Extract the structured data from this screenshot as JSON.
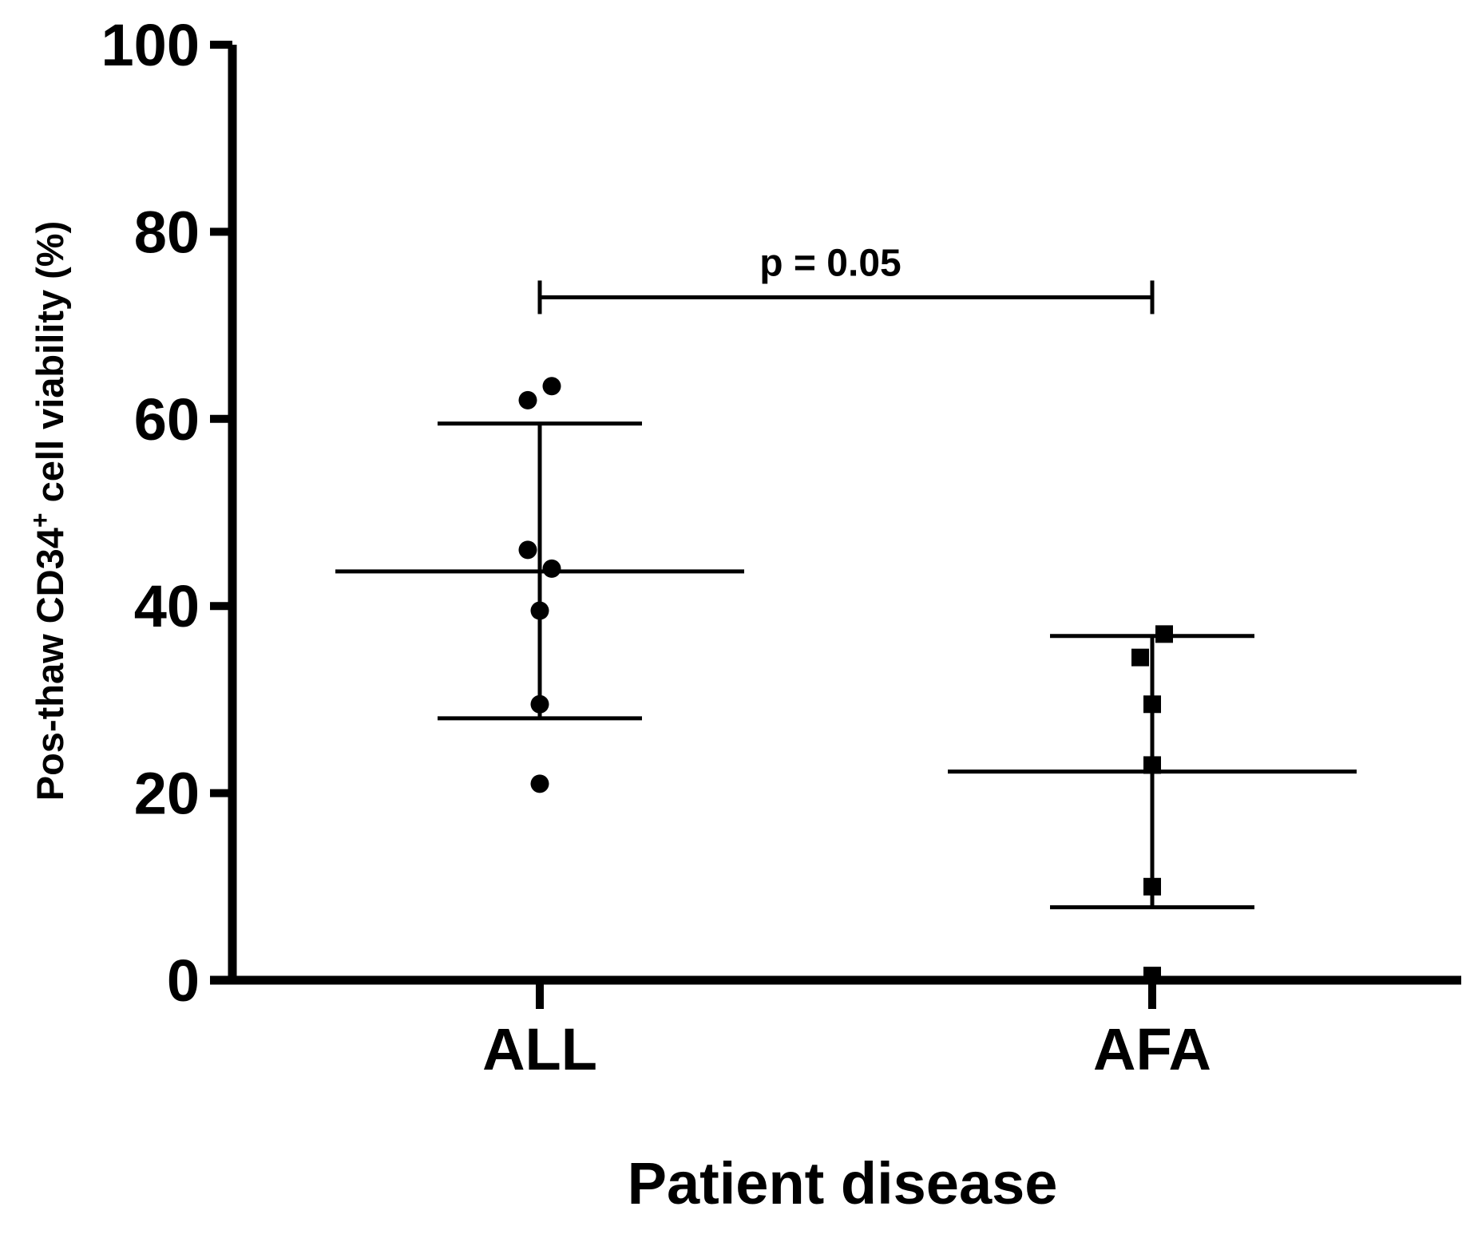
{
  "chart_data": {
    "type": "scatter",
    "title": "",
    "xlabel": "Patient disease",
    "ylabel": "Pos-thaw CD34",
    "ylabel_superscript": "+",
    "ylabel_suffix": " cell viability (%)",
    "ylim": [
      0,
      100
    ],
    "yticks": [
      "0",
      "20",
      "40",
      "60",
      "80",
      "100"
    ],
    "categories": [
      "ALL",
      "AFA"
    ],
    "series": [
      {
        "name": "ALL",
        "marker": "circle",
        "values": [
          62.0,
          63.5,
          46.0,
          44.0,
          39.5,
          29.5,
          21.0
        ],
        "mean": 43.7,
        "sd_upper": 59.5,
        "sd_lower": 28.0
      },
      {
        "name": "AFA",
        "marker": "square",
        "values": [
          37.0,
          34.5,
          29.5,
          23.0,
          10.0,
          0.5
        ],
        "mean": 22.3,
        "sd_upper": 36.8,
        "sd_lower": 7.8
      }
    ],
    "annotation": {
      "text": "p = 0.05",
      "y": 73.0,
      "from": "ALL",
      "to": "AFA"
    }
  },
  "colors": {
    "ink": "#000000",
    "background": "#ffffff"
  }
}
